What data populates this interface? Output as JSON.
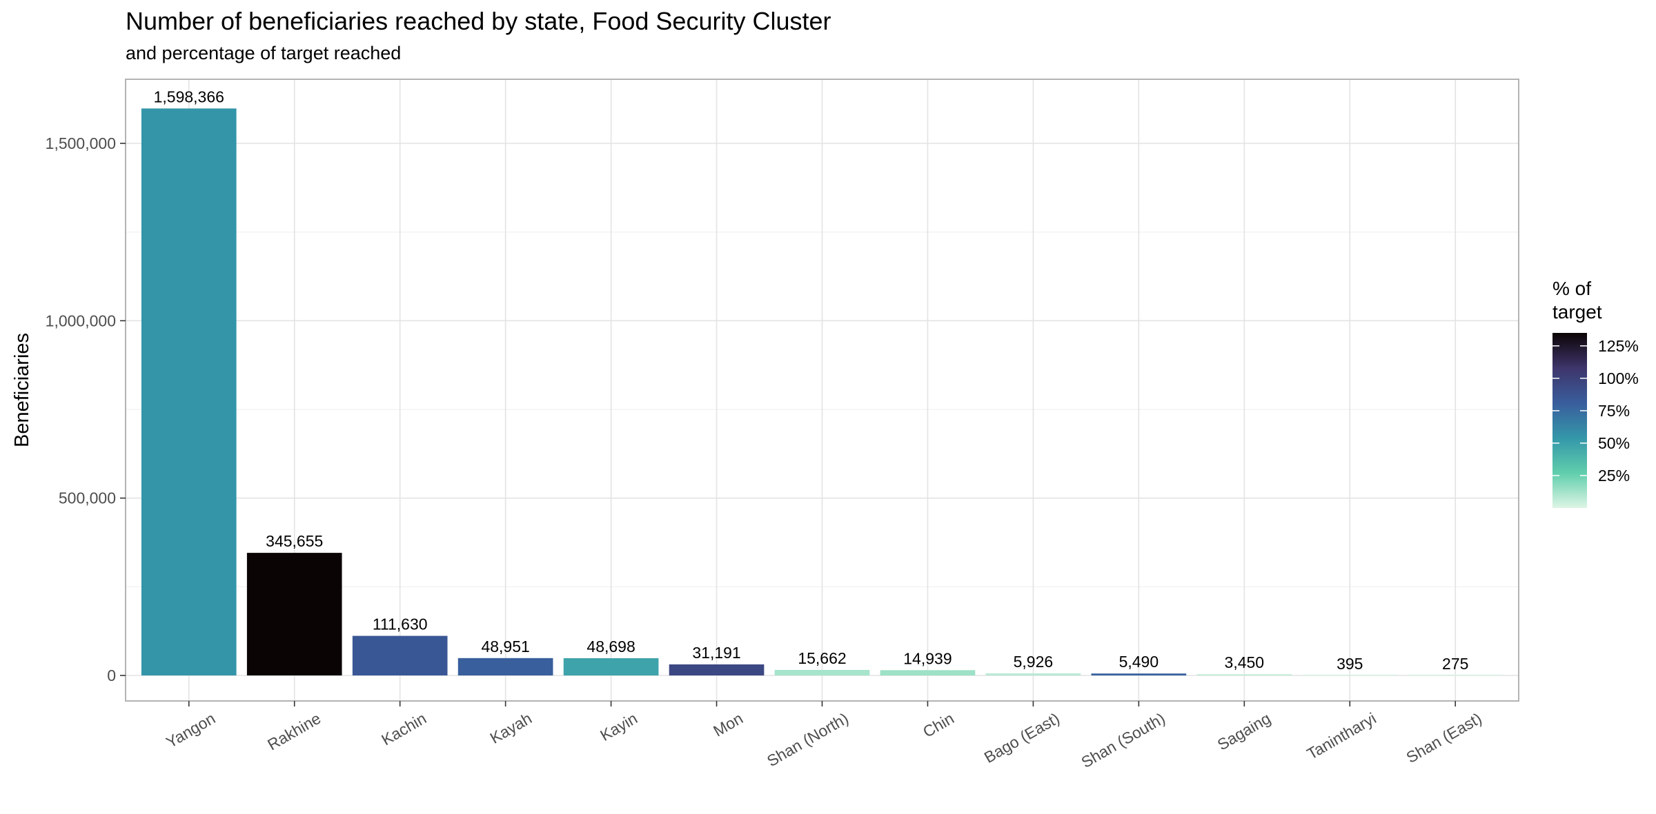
{
  "chart_data": {
    "type": "bar",
    "title": "Number of beneficiaries reached by state, Food Security Cluster",
    "subtitle": "and percentage of target reached",
    "ylabel": "Beneficiaries",
    "xlabel": "",
    "ylim": [
      0,
      1650000
    ],
    "yticks": [
      0,
      500000,
      1000000,
      1500000
    ],
    "ytick_labels": [
      "0",
      "500,000",
      "1,000,000",
      "1,500,000"
    ],
    "grid": true,
    "categories": [
      "Yangon",
      "Rakhine",
      "Kachin",
      "Kayah",
      "Kayin",
      "Mon",
      "Shan (North)",
      "Chin",
      "Bago (East)",
      "Shan (South)",
      "Sagaing",
      "Tanintharyi",
      "Shan (East)"
    ],
    "values": [
      1598366,
      345655,
      111630,
      48951,
      48698,
      31191,
      15662,
      14939,
      5926,
      5490,
      3450,
      395,
      275
    ],
    "value_labels": [
      "1,598,366",
      "345,655",
      "111,630",
      "48,951",
      "48,698",
      "31,191",
      "15,662",
      "14,939",
      "5,926",
      "5,490",
      "3,450",
      "395",
      "275"
    ],
    "percent_of_target": [
      55,
      135,
      85,
      80,
      48,
      95,
      12,
      14,
      8,
      78,
      6,
      2,
      2
    ],
    "legend": {
      "title_lines": [
        "% of",
        "target"
      ],
      "position": "right",
      "ticks": [
        125,
        100,
        75,
        50,
        25
      ],
      "tick_labels": [
        "125%",
        "100%",
        "75%",
        "50%",
        "25%"
      ],
      "range": [
        0,
        135
      ],
      "colors": [
        "#def5e5",
        "#60ceac",
        "#3497a9",
        "#395d9c",
        "#3e356b",
        "#0b0405"
      ]
    }
  }
}
